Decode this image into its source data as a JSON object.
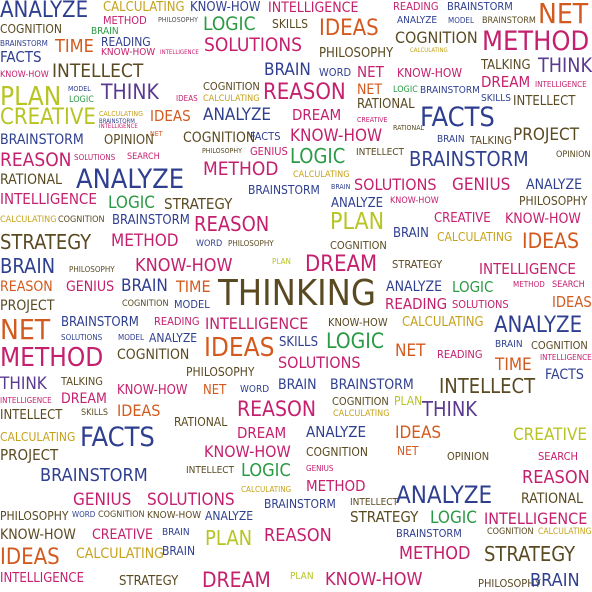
{
  "cloud": {
    "words": [
      {
        "text": "ANALYZE",
        "color": "#2f3f8f"
      },
      {
        "text": "CALCULATING",
        "color": "#c6a21b"
      },
      {
        "text": "KNOW-HOW",
        "color": "#2f3f8f"
      },
      {
        "text": "INTELLIGENCE",
        "color": "#c4206e"
      },
      {
        "text": "READING",
        "color": "#c4206e"
      },
      {
        "text": "BRAINSTORM",
        "color": "#2f3f8f"
      },
      {
        "text": "NET",
        "color": "#d35a1e"
      },
      {
        "text": "COGNITION",
        "color": "#5a4a22"
      },
      {
        "text": "METHOD",
        "color": "#c4206e"
      },
      {
        "text": "PHILOSOPHY",
        "color": "#555"
      },
      {
        "text": "LOGIC",
        "color": "#2a9a44"
      },
      {
        "text": "SKILLS",
        "color": "#5a4a22"
      },
      {
        "text": "IDEAS",
        "color": "#d35a1e"
      },
      {
        "text": "ANALYZE",
        "color": "#2f3f8f"
      },
      {
        "text": "MODEL",
        "color": "#2f3f8f"
      },
      {
        "text": "BRAINSTORM",
        "color": "#5a4a22"
      },
      {
        "text": "BRAINSTORM",
        "color": "#2f3f8f"
      },
      {
        "text": "BRAIN",
        "color": "#2a9a44"
      },
      {
        "text": "TIME",
        "color": "#d35a1e"
      },
      {
        "text": "SOLUTIONS",
        "color": "#c4206e"
      },
      {
        "text": "COGNITION",
        "color": "#5a4a22"
      },
      {
        "text": "METHOD",
        "color": "#c4206e"
      },
      {
        "text": "READING",
        "color": "#2f3f8f"
      },
      {
        "text": "KNOW-HOW",
        "color": "#c4206e"
      },
      {
        "text": "INTELLIGENCE",
        "color": "#c4206e"
      },
      {
        "text": "PHILOSOPHY",
        "color": "#5a4a22"
      },
      {
        "text": "CALCULATING",
        "color": "#c6a21b"
      },
      {
        "text": "FACTS",
        "color": "#2f3f8f"
      },
      {
        "text": "INTELLECT",
        "color": "#5a4a22"
      },
      {
        "text": "BRAIN",
        "color": "#2f3f8f"
      },
      {
        "text": "WORD",
        "color": "#2f3f8f"
      },
      {
        "text": "NET",
        "color": "#c4206e"
      },
      {
        "text": "KNOW-HOW",
        "color": "#c4206e"
      },
      {
        "text": "TALKING",
        "color": "#5a4a22"
      },
      {
        "text": "THINK",
        "color": "#5a3a8f"
      },
      {
        "text": "KNOW-HOW",
        "color": "#c4206e"
      },
      {
        "text": "DREAM",
        "color": "#c4206e"
      },
      {
        "text": "INTELLIGENCE",
        "color": "#c4206e"
      },
      {
        "text": "PLAN",
        "color": "#b7c424"
      },
      {
        "text": "MODEL",
        "color": "#2f3f8f"
      },
      {
        "text": "THINK",
        "color": "#5a3a8f"
      },
      {
        "text": "COGNITION",
        "color": "#5a4a22"
      },
      {
        "text": "REASON",
        "color": "#c4206e"
      },
      {
        "text": "NET",
        "color": "#d35a1e"
      },
      {
        "text": "LOGIC",
        "color": "#2a9a44"
      },
      {
        "text": "BRAINSTORM",
        "color": "#2f3f8f"
      },
      {
        "text": "SKILLS",
        "color": "#2f3f8f"
      },
      {
        "text": "INTELLECT",
        "color": "#5a4a22"
      },
      {
        "text": "LOGIC",
        "color": "#2a9a44"
      },
      {
        "text": "IDEAS",
        "color": "#c4206e"
      },
      {
        "text": "CALCULATING",
        "color": "#c6a21b"
      },
      {
        "text": "RATIONAL",
        "color": "#5a4a22"
      },
      {
        "text": "CREATIVE",
        "color": "#b7c424"
      },
      {
        "text": "CALCULATING",
        "color": "#c6a21b"
      },
      {
        "text": "IDEAS",
        "color": "#d35a1e"
      },
      {
        "text": "ANALYZE",
        "color": "#2f3f8f"
      },
      {
        "text": "DREAM",
        "color": "#c4206e"
      },
      {
        "text": "CREATIVE",
        "color": "#c4206e"
      },
      {
        "text": "FACTS",
        "color": "#2f3f8f"
      },
      {
        "text": "BRAINSTORM",
        "color": "#2f3f8f"
      },
      {
        "text": "INTELLIGENCE",
        "color": "#c4206e"
      },
      {
        "text": "RATIONAL",
        "color": "#5a4a22"
      },
      {
        "text": "PROJECT",
        "color": "#5a4a22"
      },
      {
        "text": "BRAINSTORM",
        "color": "#2f3f8f"
      },
      {
        "text": "OPINION",
        "color": "#5a4a22"
      },
      {
        "text": "NET",
        "color": "#d35a1e"
      },
      {
        "text": "COGNITION",
        "color": "#5a4a22"
      },
      {
        "text": "FACTS",
        "color": "#2f3f8f"
      },
      {
        "text": "KNOW-HOW",
        "color": "#c4206e"
      },
      {
        "text": "BRAIN",
        "color": "#2f3f8f"
      },
      {
        "text": "TALKING",
        "color": "#5a4a22"
      },
      {
        "text": "REASON",
        "color": "#c4206e"
      },
      {
        "text": "SOLUTIONS",
        "color": "#c4206e"
      },
      {
        "text": "SEARCH",
        "color": "#c4206e"
      },
      {
        "text": "PHILOSOPHY",
        "color": "#5a4a22"
      },
      {
        "text": "GENIUS",
        "color": "#c4206e"
      },
      {
        "text": "LOGIC",
        "color": "#2a9a44"
      },
      {
        "text": "INTELLECT",
        "color": "#5a4a22"
      },
      {
        "text": "BRAINSTORM",
        "color": "#2f3f8f"
      },
      {
        "text": "OPINION",
        "color": "#5a4a22"
      },
      {
        "text": "RATIONAL",
        "color": "#5a4a22"
      },
      {
        "text": "ANALYZE",
        "color": "#2f3f8f"
      },
      {
        "text": "METHOD",
        "color": "#c4206e"
      },
      {
        "text": "CALCULATING",
        "color": "#c6a21b"
      },
      {
        "text": "SOLUTIONS",
        "color": "#c4206e"
      },
      {
        "text": "GENIUS",
        "color": "#c4206e"
      },
      {
        "text": "ANALYZE",
        "color": "#2f3f8f"
      },
      {
        "text": "INTELLIGENCE",
        "color": "#c4206e"
      },
      {
        "text": "LOGIC",
        "color": "#2a9a44"
      },
      {
        "text": "STRATEGY",
        "color": "#5a4a22"
      },
      {
        "text": "BRAINSTORM",
        "color": "#2f3f8f"
      },
      {
        "text": "ANALYZE",
        "color": "#2f3f8f"
      },
      {
        "text": "BRAIN",
        "color": "#2f3f8f"
      },
      {
        "text": "KNOW-HOW",
        "color": "#c4206e"
      },
      {
        "text": "PHILOSOPHY",
        "color": "#5a4a22"
      },
      {
        "text": "CALCULATING",
        "color": "#c6a21b"
      },
      {
        "text": "COGNITION",
        "color": "#5a4a22"
      },
      {
        "text": "BRAINSTORM",
        "color": "#2f3f8f"
      },
      {
        "text": "REASON",
        "color": "#c4206e"
      },
      {
        "text": "PLAN",
        "color": "#b7c424"
      },
      {
        "text": "CREATIVE",
        "color": "#c4206e"
      },
      {
        "text": "KNOW-HOW",
        "color": "#c4206e"
      },
      {
        "text": "STRATEGY",
        "color": "#5a4a22"
      },
      {
        "text": "METHOD",
        "color": "#c4206e"
      },
      {
        "text": "WORD",
        "color": "#2f3f8f"
      },
      {
        "text": "PHILOSOPHY",
        "color": "#5a4a22"
      },
      {
        "text": "COGNITION",
        "color": "#5a4a22"
      },
      {
        "text": "BRAIN",
        "color": "#2f3f8f"
      },
      {
        "text": "CALCULATING",
        "color": "#c6a21b"
      },
      {
        "text": "IDEAS",
        "color": "#d35a1e"
      },
      {
        "text": "BRAIN",
        "color": "#2f3f8f"
      },
      {
        "text": "PHILOSOPHY",
        "color": "#5a4a22"
      },
      {
        "text": "KNOW-HOW",
        "color": "#c4206e"
      },
      {
        "text": "PLAN",
        "color": "#b7c424"
      },
      {
        "text": "DREAM",
        "color": "#c4206e"
      },
      {
        "text": "STRATEGY",
        "color": "#5a4a22"
      },
      {
        "text": "INTELLIGENCE",
        "color": "#c4206e"
      },
      {
        "text": "REASON",
        "color": "#d35a1e"
      },
      {
        "text": "GENIUS",
        "color": "#c4206e"
      },
      {
        "text": "BRAIN",
        "color": "#2f3f8f"
      },
      {
        "text": "TIME",
        "color": "#d35a1e"
      },
      {
        "text": "THINKING",
        "color": "#5a4a22"
      },
      {
        "text": "ANALYZE",
        "color": "#2f3f8f"
      },
      {
        "text": "LOGIC",
        "color": "#2a9a44"
      },
      {
        "text": "METHOD",
        "color": "#c4206e"
      },
      {
        "text": "SEARCH",
        "color": "#c4206e"
      },
      {
        "text": "PROJECT",
        "color": "#5a4a22"
      },
      {
        "text": "COGNITION",
        "color": "#5a4a22"
      },
      {
        "text": "MODEL",
        "color": "#2f3f8f"
      },
      {
        "text": "READING",
        "color": "#c4206e"
      },
      {
        "text": "SOLUTIONS",
        "color": "#c4206e"
      },
      {
        "text": "IDEAS",
        "color": "#d35a1e"
      },
      {
        "text": "NET",
        "color": "#d35a1e"
      },
      {
        "text": "BRAINSTORM",
        "color": "#2f3f8f"
      },
      {
        "text": "READING",
        "color": "#c4206e"
      },
      {
        "text": "INTELLIGENCE",
        "color": "#c4206e"
      },
      {
        "text": "KNOW-HOW",
        "color": "#5a4a22"
      },
      {
        "text": "CALCULATING",
        "color": "#c6a21b"
      },
      {
        "text": "ANALYZE",
        "color": "#2f3f8f"
      },
      {
        "text": "METHOD",
        "color": "#c4206e"
      },
      {
        "text": "SOLUTIONS",
        "color": "#2f3f8f"
      },
      {
        "text": "MODEL",
        "color": "#2f3f8f"
      },
      {
        "text": "ANALYZE",
        "color": "#2f3f8f"
      },
      {
        "text": "IDEAS",
        "color": "#d35a1e"
      },
      {
        "text": "SKILLS",
        "color": "#2f3f8f"
      },
      {
        "text": "LOGIC",
        "color": "#2a9a44"
      },
      {
        "text": "NET",
        "color": "#d35a1e"
      },
      {
        "text": "BRAIN",
        "color": "#2f3f8f"
      },
      {
        "text": "COGNITION",
        "color": "#5a4a22"
      },
      {
        "text": "COGNITION",
        "color": "#5a4a22"
      },
      {
        "text": "SOLUTIONS",
        "color": "#c4206e"
      },
      {
        "text": "READING",
        "color": "#c4206e"
      },
      {
        "text": "TIME",
        "color": "#d35a1e"
      },
      {
        "text": "INTELLIGENCE",
        "color": "#c4206e"
      },
      {
        "text": "THINK",
        "color": "#5a3a8f"
      },
      {
        "text": "TALKING",
        "color": "#5a4a22"
      },
      {
        "text": "PHILOSOPHY",
        "color": "#5a4a22"
      },
      {
        "text": "BRAIN",
        "color": "#2f3f8f"
      },
      {
        "text": "BRAINSTORM",
        "color": "#2f3f8f"
      },
      {
        "text": "INTELLECT",
        "color": "#5a4a22"
      },
      {
        "text": "FACTS",
        "color": "#2f3f8f"
      },
      {
        "text": "INTELLIGENCE",
        "color": "#c4206e"
      },
      {
        "text": "DREAM",
        "color": "#c4206e"
      },
      {
        "text": "KNOW-HOW",
        "color": "#c4206e"
      },
      {
        "text": "NET",
        "color": "#d35a1e"
      },
      {
        "text": "WORD",
        "color": "#2f3f8f"
      },
      {
        "text": "COGNITION",
        "color": "#5a4a22"
      },
      {
        "text": "PLAN",
        "color": "#b7c424"
      },
      {
        "text": "INTELLECT",
        "color": "#5a4a22"
      },
      {
        "text": "SKILLS",
        "color": "#5a4a22"
      },
      {
        "text": "IDEAS",
        "color": "#d35a1e"
      },
      {
        "text": "REASON",
        "color": "#c4206e"
      },
      {
        "text": "CALCULATING",
        "color": "#c6a21b"
      },
      {
        "text": "THINK",
        "color": "#5a3a8f"
      },
      {
        "text": "CALCULATING",
        "color": "#c6a21b"
      },
      {
        "text": "RATIONAL",
        "color": "#5a4a22"
      },
      {
        "text": "IDEAS",
        "color": "#d35a1e"
      },
      {
        "text": "CREATIVE",
        "color": "#b7c424"
      },
      {
        "text": "FACTS",
        "color": "#2f3f8f"
      },
      {
        "text": "DREAM",
        "color": "#c4206e"
      },
      {
        "text": "ANALYZE",
        "color": "#2f3f8f"
      },
      {
        "text": "PROJECT",
        "color": "#5a4a22"
      },
      {
        "text": "KNOW-HOW",
        "color": "#c4206e"
      },
      {
        "text": "COGNITION",
        "color": "#5a4a22"
      },
      {
        "text": "NET",
        "color": "#d35a1e"
      },
      {
        "text": "OPINION",
        "color": "#5a4a22"
      },
      {
        "text": "SEARCH",
        "color": "#c4206e"
      },
      {
        "text": "BRAINSTORM",
        "color": "#2f3f8f"
      },
      {
        "text": "INTELLECT",
        "color": "#5a4a22"
      },
      {
        "text": "LOGIC",
        "color": "#2a9a44"
      },
      {
        "text": "GENIUS",
        "color": "#c4206e"
      },
      {
        "text": "METHOD",
        "color": "#c4206e"
      },
      {
        "text": "REASON",
        "color": "#c4206e"
      },
      {
        "text": "ANALYZE",
        "color": "#2f3f8f"
      },
      {
        "text": "GENIUS",
        "color": "#c4206e"
      },
      {
        "text": "SOLUTIONS",
        "color": "#c4206e"
      },
      {
        "text": "CALCULATING",
        "color": "#c6a21b"
      },
      {
        "text": "RATIONAL",
        "color": "#5a4a22"
      },
      {
        "text": "PHILOSOPHY",
        "color": "#5a4a22"
      },
      {
        "text": "WORD",
        "color": "#2f3f8f"
      },
      {
        "text": "COGNITION",
        "color": "#5a4a22"
      },
      {
        "text": "KNOW-HOW",
        "color": "#5a4a22"
      },
      {
        "text": "ANALYZE",
        "color": "#2f3f8f"
      },
      {
        "text": "BRAINSTORM",
        "color": "#2f3f8f"
      },
      {
        "text": "INTELLECT",
        "color": "#5a4a22"
      },
      {
        "text": "STRATEGY",
        "color": "#5a4a22"
      },
      {
        "text": "LOGIC",
        "color": "#2a9a44"
      },
      {
        "text": "INTELLIGENCE",
        "color": "#c4206e"
      },
      {
        "text": "KNOW-HOW",
        "color": "#5a4a22"
      },
      {
        "text": "CREATIVE",
        "color": "#c4206e"
      },
      {
        "text": "BRAIN",
        "color": "#2f3f8f"
      },
      {
        "text": "PLAN",
        "color": "#b7c424"
      },
      {
        "text": "REASON",
        "color": "#c4206e"
      },
      {
        "text": "BRAINSTORM",
        "color": "#2f3f8f"
      },
      {
        "text": "COGNITION",
        "color": "#5a4a22"
      },
      {
        "text": "CALCULATING",
        "color": "#c6a21b"
      },
      {
        "text": "IDEAS",
        "color": "#d35a1e"
      },
      {
        "text": "CALCULATING",
        "color": "#c6a21b"
      },
      {
        "text": "BRAIN",
        "color": "#2f3f8f"
      },
      {
        "text": "METHOD",
        "color": "#c4206e"
      },
      {
        "text": "STRATEGY",
        "color": "#5a4a22"
      },
      {
        "text": "INTELLIGENCE",
        "color": "#c4206e"
      },
      {
        "text": "STRATEGY",
        "color": "#5a4a22"
      },
      {
        "text": "DREAM",
        "color": "#c4206e"
      },
      {
        "text": "PLAN",
        "color": "#b7c424"
      },
      {
        "text": "KNOW-HOW",
        "color": "#c4206e"
      },
      {
        "text": "PHILOSOPHY",
        "color": "#5a4a22"
      },
      {
        "text": "BRAIN",
        "color": "#2f3f8f"
      }
    ]
  }
}
